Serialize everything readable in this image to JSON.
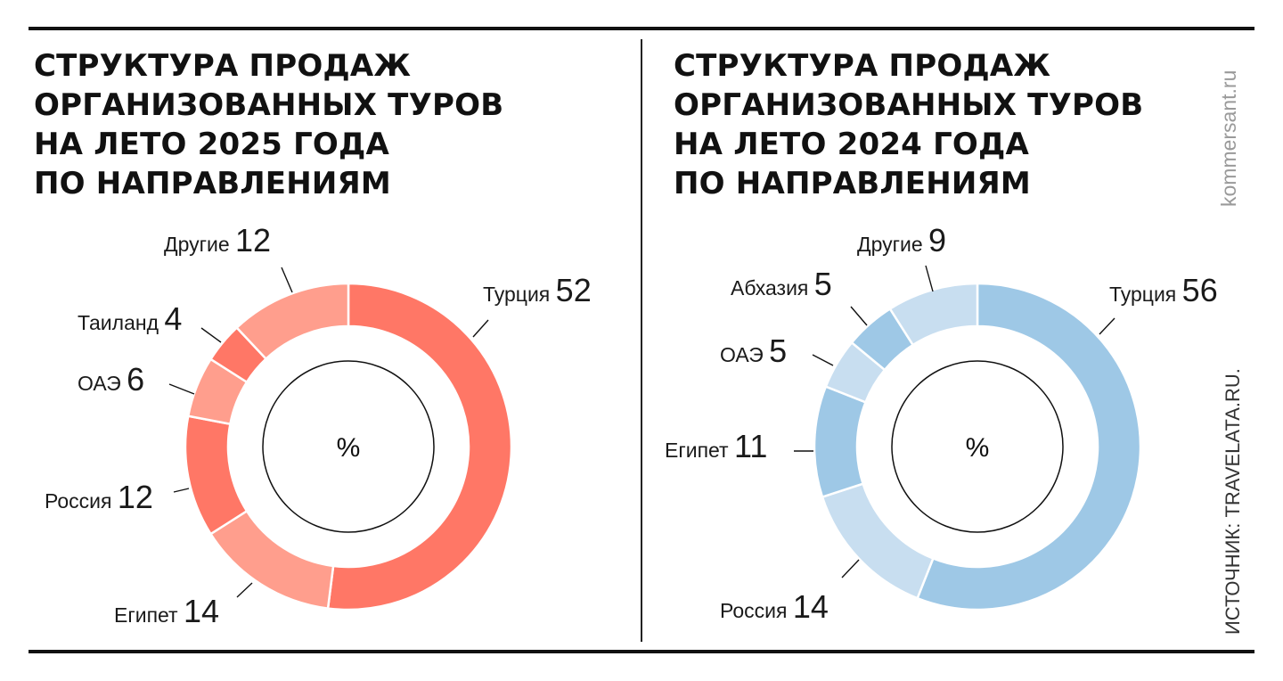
{
  "brand": "kommersant.ru",
  "source": "ИСТОЧНИК: TRAVELATA.RU.",
  "chart_data": [
    {
      "type": "pie",
      "title_lines": [
        "СТРУКТУРА ПРОДАЖ",
        "ОРГАНИЗОВАННЫХ ТУРОВ",
        "НА ЛЕТО 2025 ГОДА",
        "ПО НАПРАВЛЕНИЯМ"
      ],
      "center_label": "%",
      "categories": [
        "Турция",
        "Египет",
        "Россия",
        "ОАЭ",
        "Таиланд",
        "Другие"
      ],
      "values": [
        52,
        14,
        12,
        6,
        4,
        12
      ],
      "colors": [
        "#ff7766",
        "#ff9e8d",
        "#ff7766",
        "#ff9e8d",
        "#ff7766",
        "#ff9e8d"
      ]
    },
    {
      "type": "pie",
      "title_lines": [
        "СТРУКТУРА ПРОДАЖ",
        "ОРГАНИЗОВАННЫХ ТУРОВ",
        "НА ЛЕТО 2024 ГОДА",
        "ПО НАПРАВЛЕНИЯМ"
      ],
      "center_label": "%",
      "categories": [
        "Турция",
        "Россия",
        "Египет",
        "ОАЭ",
        "Абхазия",
        "Другие"
      ],
      "values": [
        56,
        14,
        11,
        5,
        5,
        9
      ],
      "colors": [
        "#9ec8e6",
        "#c8def0",
        "#9ec8e6",
        "#c8def0",
        "#9ec8e6",
        "#c8def0"
      ]
    }
  ]
}
